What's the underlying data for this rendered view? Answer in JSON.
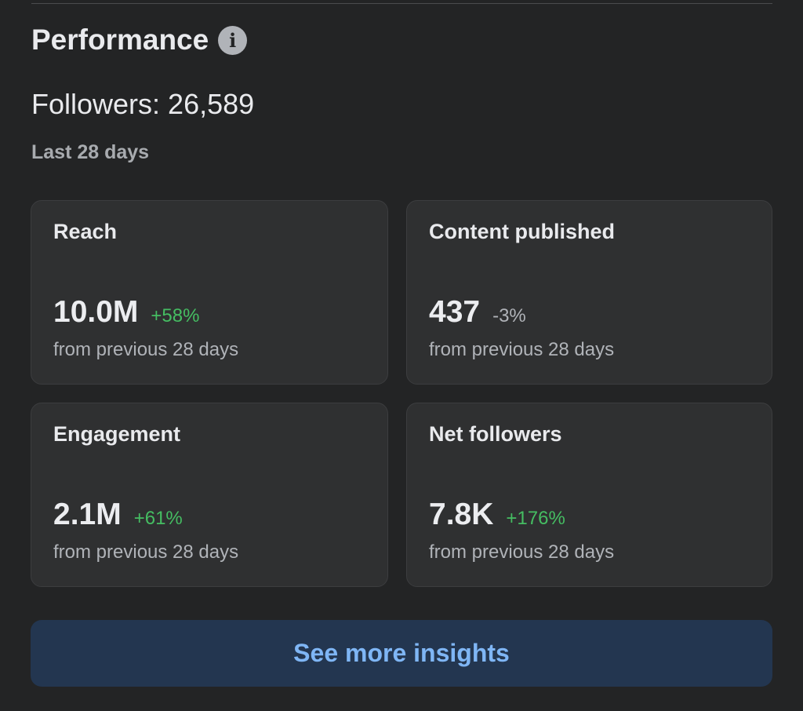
{
  "header": {
    "title": "Performance",
    "info_icon": "info-icon"
  },
  "followers_text": "Followers: 26,589",
  "period": "Last 28 days",
  "colors": {
    "positive": "#45bd62",
    "neutral": "#b0b3b8",
    "button_text": "#7fb6f5",
    "button_bg": "#233650"
  },
  "cards": [
    {
      "label": "Reach",
      "value": "10.0M",
      "change": "+58%",
      "trend": "positive",
      "sub": "from previous 28 days"
    },
    {
      "label": "Content published",
      "value": "437",
      "change": "-3%",
      "trend": "neutral",
      "sub": "from previous 28 days"
    },
    {
      "label": "Engagement",
      "value": "2.1M",
      "change": "+61%",
      "trend": "positive",
      "sub": "from previous 28 days"
    },
    {
      "label": "Net followers",
      "value": "7.8K",
      "change": "+176%",
      "trend": "positive",
      "sub": "from previous 28 days"
    }
  ],
  "button": {
    "label": "See more insights"
  }
}
